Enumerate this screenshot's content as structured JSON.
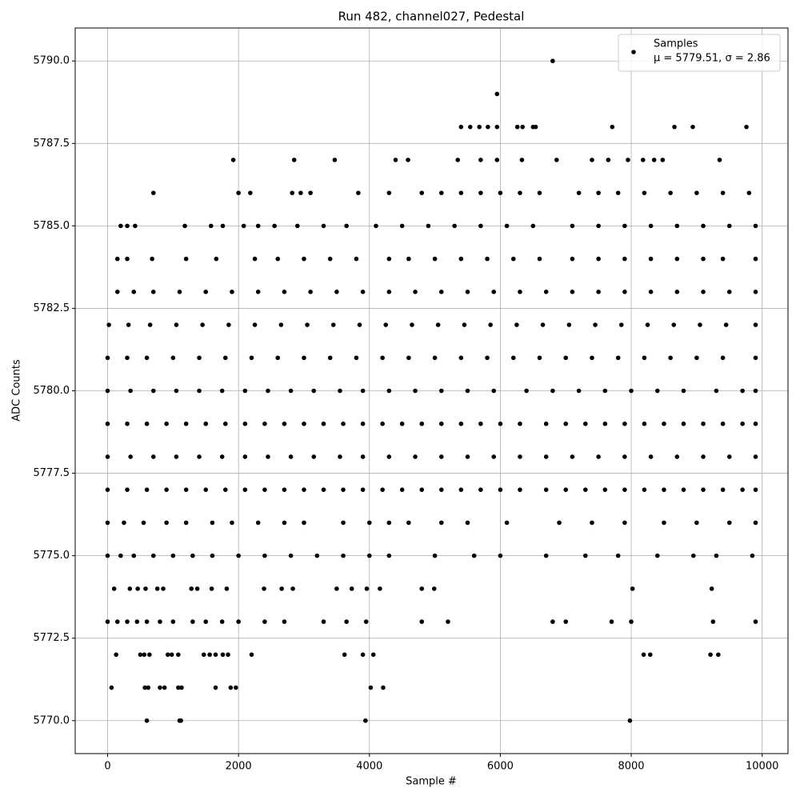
{
  "chart_data": {
    "type": "scatter",
    "title": "Run 482, channel027, Pedestal",
    "x_label": "Sample #",
    "y_label": "ADC Counts",
    "xlim": [
      -495,
      10395
    ],
    "ylim": [
      5769,
      5791
    ],
    "xticks": [
      0,
      2000,
      4000,
      6000,
      8000,
      10000
    ],
    "yticks": [
      {
        "value": 5770,
        "label": "5770.0"
      },
      {
        "value": 5772.5,
        "label": "5772.5"
      },
      {
        "value": 5775,
        "label": "5775.0"
      },
      {
        "value": 5777.5,
        "label": "5777.5"
      },
      {
        "value": 5780,
        "label": "5780.0"
      },
      {
        "value": 5782.5,
        "label": "5782.5"
      },
      {
        "value": 5785,
        "label": "5785.0"
      },
      {
        "value": 5787.5,
        "label": "5787.5"
      },
      {
        "value": 5790,
        "label": "5790.0"
      }
    ],
    "grid": true,
    "legend": "upper right",
    "series": [
      {
        "name": "Samples",
        "legend_note": "μ = 5779.51, σ = 2.86",
        "color": "#000000",
        "x": [
          600,
          1100,
          1120,
          3940,
          7980,
          60,
          570,
          620,
          800,
          870,
          1080,
          1130,
          1650,
          1880,
          1960,
          4020,
          4210,
          130,
          500,
          560,
          640,
          920,
          980,
          1080,
          1470,
          1560,
          1650,
          1760,
          1840,
          2200,
          3620,
          3900,
          4060,
          8190,
          8290,
          9210,
          9330,
          0,
          150,
          300,
          450,
          600,
          800,
          1000,
          1300,
          1500,
          1750,
          2000,
          2400,
          2700,
          3300,
          3650,
          3950,
          4800,
          5200,
          6800,
          7000,
          7700,
          8000,
          9250,
          9900,
          100,
          340,
          460,
          580,
          760,
          850,
          1280,
          1370,
          1590,
          1820,
          2390,
          2660,
          2830,
          3500,
          3730,
          3960,
          4160,
          4800,
          4990,
          8020,
          9230,
          0,
          200,
          400,
          700,
          1000,
          1300,
          1600,
          2000,
          2400,
          2800,
          3200,
          3600,
          4000,
          4300,
          5000,
          5600,
          6000,
          6700,
          7300,
          7800,
          8400,
          8950,
          9300,
          9850,
          0,
          250,
          550,
          900,
          1200,
          1600,
          1900,
          2300,
          2700,
          3000,
          3600,
          4000,
          4300,
          4600,
          5100,
          5500,
          6100,
          6900,
          7400,
          7900,
          8500,
          9000,
          9500,
          9900,
          0,
          300,
          600,
          900,
          1200,
          1500,
          1800,
          2100,
          2400,
          2700,
          3000,
          3300,
          3600,
          3900,
          4200,
          4500,
          4800,
          5100,
          5400,
          5700,
          6000,
          6300,
          6700,
          7000,
          7300,
          7600,
          7900,
          8200,
          8500,
          8800,
          9100,
          9400,
          9700,
          9900,
          0,
          350,
          700,
          1050,
          1400,
          1750,
          2100,
          2450,
          2800,
          3150,
          3550,
          3900,
          4300,
          4700,
          5100,
          5500,
          5900,
          6300,
          6700,
          7100,
          7500,
          7900,
          8300,
          8700,
          9100,
          9500,
          9900,
          0,
          300,
          600,
          900,
          1200,
          1500,
          1800,
          2100,
          2400,
          2700,
          3000,
          3300,
          3600,
          3900,
          4200,
          4500,
          4800,
          5100,
          5400,
          5700,
          6000,
          6300,
          6700,
          7000,
          7300,
          7600,
          7900,
          8200,
          8500,
          8800,
          9100,
          9400,
          9700,
          9900,
          0,
          350,
          700,
          1050,
          1400,
          1750,
          2100,
          2450,
          2800,
          3150,
          3550,
          3900,
          4300,
          4700,
          5100,
          5500,
          5900,
          6400,
          6800,
          7200,
          7600,
          8000,
          8400,
          8800,
          9300,
          9700,
          9900,
          0,
          300,
          600,
          1000,
          1400,
          1800,
          2200,
          2600,
          3000,
          3400,
          3800,
          4200,
          4600,
          5000,
          5400,
          5800,
          6200,
          6600,
          7000,
          7400,
          7800,
          8200,
          8600,
          9000,
          9400,
          9900,
          20,
          320,
          650,
          1050,
          1450,
          1850,
          2250,
          2650,
          3050,
          3450,
          3850,
          4250,
          4650,
          5050,
          5450,
          5850,
          6250,
          6650,
          7050,
          7450,
          7850,
          8250,
          8650,
          9050,
          9450,
          9900,
          150,
          400,
          700,
          1100,
          1500,
          1900,
          2300,
          2700,
          3100,
          3500,
          3900,
          4300,
          4700,
          5100,
          5500,
          5900,
          6300,
          6700,
          7100,
          7500,
          7900,
          8300,
          8700,
          9100,
          9500,
          9900,
          150,
          300,
          680,
          1200,
          1660,
          2250,
          2600,
          3000,
          3400,
          3800,
          4300,
          4600,
          5000,
          5400,
          5800,
          6200,
          6600,
          7100,
          7500,
          7900,
          8300,
          8700,
          9100,
          9400,
          9900,
          200,
          300,
          420,
          1180,
          1580,
          1760,
          2080,
          2300,
          2550,
          2900,
          3300,
          3650,
          4100,
          4500,
          4900,
          5300,
          5700,
          6100,
          6500,
          7100,
          7500,
          7900,
          8300,
          8700,
          9100,
          9500,
          9900,
          700,
          2000,
          2180,
          2820,
          2950,
          3100,
          3830,
          4300,
          4800,
          5100,
          5400,
          5700,
          6000,
          6300,
          6600,
          7200,
          7500,
          7800,
          8200,
          8600,
          9000,
          9400,
          9800,
          1920,
          2850,
          3470,
          4400,
          4590,
          5350,
          5700,
          5950,
          6330,
          6860,
          7400,
          7650,
          7950,
          8180,
          8350,
          8480,
          9350,
          5400,
          5540,
          5680,
          5810,
          5950,
          6260,
          6340,
          6500,
          6540,
          7710,
          8660,
          8940,
          9760,
          5950,
          6800
        ],
        "values": [
          5770,
          5770,
          5770,
          5770,
          5770,
          5771,
          5771,
          5771,
          5771,
          5771,
          5771,
          5771,
          5771,
          5771,
          5771,
          5771,
          5771,
          5772,
          5772,
          5772,
          5772,
          5772,
          5772,
          5772,
          5772,
          5772,
          5772,
          5772,
          5772,
          5772,
          5772,
          5772,
          5772,
          5772,
          5772,
          5772,
          5772,
          5773,
          5773,
          5773,
          5773,
          5773,
          5773,
          5773,
          5773,
          5773,
          5773,
          5773,
          5773,
          5773,
          5773,
          5773,
          5773,
          5773,
          5773,
          5773,
          5773,
          5773,
          5773,
          5773,
          5773,
          5774,
          5774,
          5774,
          5774,
          5774,
          5774,
          5774,
          5774,
          5774,
          5774,
          5774,
          5774,
          5774,
          5774,
          5774,
          5774,
          5774,
          5774,
          5774,
          5774,
          5774,
          5775,
          5775,
          5775,
          5775,
          5775,
          5775,
          5775,
          5775,
          5775,
          5775,
          5775,
          5775,
          5775,
          5775,
          5775,
          5775,
          5775,
          5775,
          5775,
          5775,
          5775,
          5775,
          5775,
          5775,
          5776,
          5776,
          5776,
          5776,
          5776,
          5776,
          5776,
          5776,
          5776,
          5776,
          5776,
          5776,
          5776,
          5776,
          5776,
          5776,
          5776,
          5776,
          5776,
          5776,
          5776,
          5776,
          5776,
          5776,
          5777,
          5777,
          5777,
          5777,
          5777,
          5777,
          5777,
          5777,
          5777,
          5777,
          5777,
          5777,
          5777,
          5777,
          5777,
          5777,
          5777,
          5777,
          5777,
          5777,
          5777,
          5777,
          5777,
          5777,
          5777,
          5777,
          5777,
          5777,
          5777,
          5777,
          5777,
          5777,
          5777,
          5777,
          5778,
          5778,
          5778,
          5778,
          5778,
          5778,
          5778,
          5778,
          5778,
          5778,
          5778,
          5778,
          5778,
          5778,
          5778,
          5778,
          5778,
          5778,
          5778,
          5778,
          5778,
          5778,
          5778,
          5778,
          5778,
          5778,
          5778,
          5779,
          5779,
          5779,
          5779,
          5779,
          5779,
          5779,
          5779,
          5779,
          5779,
          5779,
          5779,
          5779,
          5779,
          5779,
          5779,
          5779,
          5779,
          5779,
          5779,
          5779,
          5779,
          5779,
          5779,
          5779,
          5779,
          5779,
          5779,
          5779,
          5779,
          5779,
          5779,
          5779,
          5779,
          5780,
          5780,
          5780,
          5780,
          5780,
          5780,
          5780,
          5780,
          5780,
          5780,
          5780,
          5780,
          5780,
          5780,
          5780,
          5780,
          5780,
          5780,
          5780,
          5780,
          5780,
          5780,
          5780,
          5780,
          5780,
          5780,
          5780,
          5781,
          5781,
          5781,
          5781,
          5781,
          5781,
          5781,
          5781,
          5781,
          5781,
          5781,
          5781,
          5781,
          5781,
          5781,
          5781,
          5781,
          5781,
          5781,
          5781,
          5781,
          5781,
          5781,
          5781,
          5781,
          5781,
          5782,
          5782,
          5782,
          5782,
          5782,
          5782,
          5782,
          5782,
          5782,
          5782,
          5782,
          5782,
          5782,
          5782,
          5782,
          5782,
          5782,
          5782,
          5782,
          5782,
          5782,
          5782,
          5782,
          5782,
          5782,
          5782,
          5783,
          5783,
          5783,
          5783,
          5783,
          5783,
          5783,
          5783,
          5783,
          5783,
          5783,
          5783,
          5783,
          5783,
          5783,
          5783,
          5783,
          5783,
          5783,
          5783,
          5783,
          5783,
          5783,
          5783,
          5783,
          5783,
          5784,
          5784,
          5784,
          5784,
          5784,
          5784,
          5784,
          5784,
          5784,
          5784,
          5784,
          5784,
          5784,
          5784,
          5784,
          5784,
          5784,
          5784,
          5784,
          5784,
          5784,
          5784,
          5784,
          5784,
          5784,
          5785,
          5785,
          5785,
          5785,
          5785,
          5785,
          5785,
          5785,
          5785,
          5785,
          5785,
          5785,
          5785,
          5785,
          5785,
          5785,
          5785,
          5785,
          5785,
          5785,
          5785,
          5785,
          5785,
          5785,
          5785,
          5785,
          5785,
          5786,
          5786,
          5786,
          5786,
          5786,
          5786,
          5786,
          5786,
          5786,
          5786,
          5786,
          5786,
          5786,
          5786,
          5786,
          5786,
          5786,
          5786,
          5786,
          5786,
          5786,
          5786,
          5786,
          5787,
          5787,
          5787,
          5787,
          5787,
          5787,
          5787,
          5787,
          5787,
          5787,
          5787,
          5787,
          5787,
          5787,
          5787,
          5787,
          5787,
          5788,
          5788,
          5788,
          5788,
          5788,
          5788,
          5788,
          5788,
          5788,
          5788,
          5788,
          5788,
          5788,
          5789,
          5790
        ]
      }
    ]
  }
}
